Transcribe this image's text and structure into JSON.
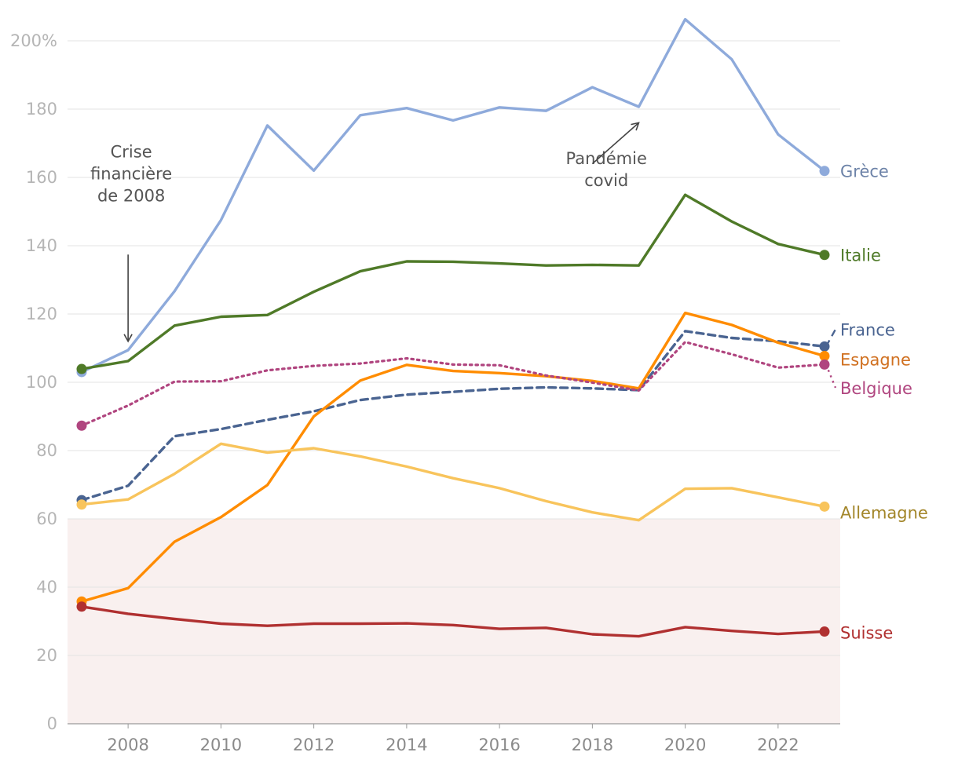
{
  "chart_data": {
    "type": "line",
    "title": "",
    "xlabel": "",
    "ylabel": "",
    "ylim": [
      0,
      200
    ],
    "xlim": [
      2007,
      2023
    ],
    "y_ticks": [
      "0",
      "20",
      "40",
      "60",
      "80",
      "100",
      "120",
      "140",
      "160",
      "180",
      "200%"
    ],
    "x_ticks": [
      "2008",
      "2010",
      "2012",
      "2014",
      "2016",
      "2018",
      "2020",
      "2022"
    ],
    "grid": true,
    "shaded_band": {
      "from": 0,
      "to": 60,
      "color": "#f9f0ef"
    },
    "x": [
      2007,
      2008,
      2009,
      2010,
      2011,
      2012,
      2013,
      2014,
      2015,
      2016,
      2017,
      2018,
      2019,
      2020,
      2021,
      2022,
      2023
    ],
    "series": [
      {
        "name": "Grèce",
        "color": "#8eaadb",
        "label_color": "#6d83a8",
        "style": "solid",
        "values": [
          103,
          109.4,
          126.7,
          147.5,
          175.2,
          162,
          178.2,
          180.3,
          176.7,
          180.5,
          179.5,
          186.4,
          180.7,
          206.3,
          194.6,
          172.6,
          161.9
        ]
      },
      {
        "name": "Italie",
        "color": "#4f7a28",
        "label_color": "#4f7a28",
        "style": "solid",
        "values": [
          103.9,
          106.2,
          116.6,
          119.2,
          119.7,
          126.5,
          132.5,
          135.4,
          135.3,
          134.8,
          134.2,
          134.4,
          134.2,
          154.9,
          147.1,
          140.5,
          137.3
        ]
      },
      {
        "name": "France",
        "color": "#4a6491",
        "label_color": "#4a6491",
        "style": "dashed",
        "values": [
          65.5,
          69.7,
          84.2,
          86.3,
          89,
          91.5,
          94.8,
          96.4,
          97.2,
          98.1,
          98.5,
          98.2,
          97.7,
          115,
          113,
          112,
          110.5
        ]
      },
      {
        "name": "Espagne",
        "color": "#ff8c00",
        "label_color": "#d07020",
        "style": "solid",
        "values": [
          35.8,
          39.7,
          53.3,
          60.5,
          69.9,
          90,
          100.5,
          105.1,
          103.3,
          102.7,
          101.8,
          100.4,
          98.2,
          120.3,
          116.8,
          111.6,
          107.7
        ]
      },
      {
        "name": "Belgique",
        "color": "#b0457f",
        "label_color": "#b0457f",
        "style": "dotted",
        "values": [
          87.3,
          93.2,
          100.2,
          100.3,
          103.5,
          104.8,
          105.5,
          107,
          105.2,
          105,
          102,
          99.9,
          97.6,
          111.8,
          108.2,
          104.3,
          105.2
        ]
      },
      {
        "name": "Allemagne",
        "color": "#f8c45c",
        "label_color": "#a3862a",
        "style": "solid",
        "values": [
          64.2,
          65.7,
          73.2,
          82,
          79.4,
          80.7,
          78.3,
          75.3,
          71.9,
          69,
          65.2,
          61.9,
          59.6,
          68.8,
          69,
          66.3,
          63.6
        ]
      },
      {
        "name": "Suisse",
        "color": "#b03030",
        "label_color": "#b03030",
        "style": "solid",
        "values": [
          34.3,
          32.2,
          30.7,
          29.3,
          28.7,
          29.3,
          29.3,
          29.4,
          28.9,
          27.8,
          28.1,
          26.2,
          25.6,
          28.3,
          27.2,
          26.3,
          27
        ]
      }
    ],
    "label_anchor_values": {
      "Grèce": 161.9,
      "Italie": 137.3,
      "France": 115.5,
      "Espagne": 106.8,
      "Belgique": 98.4,
      "Allemagne": 62,
      "Suisse": 26.8
    },
    "annotations": [
      {
        "lines": [
          "Crise",
          "financière",
          "de 2008"
        ],
        "x": 2008,
        "y": 162,
        "arrow_to": [
          2008,
          112
        ],
        "arrow_from": [
          2008,
          142
        ]
      },
      {
        "lines": [
          "Pandémie",
          "covid"
        ],
        "x": 2018.2,
        "y": 160,
        "arrow_from": [
          2018,
          164
        ],
        "arrow_to": [
          2019,
          176
        ]
      }
    ]
  }
}
